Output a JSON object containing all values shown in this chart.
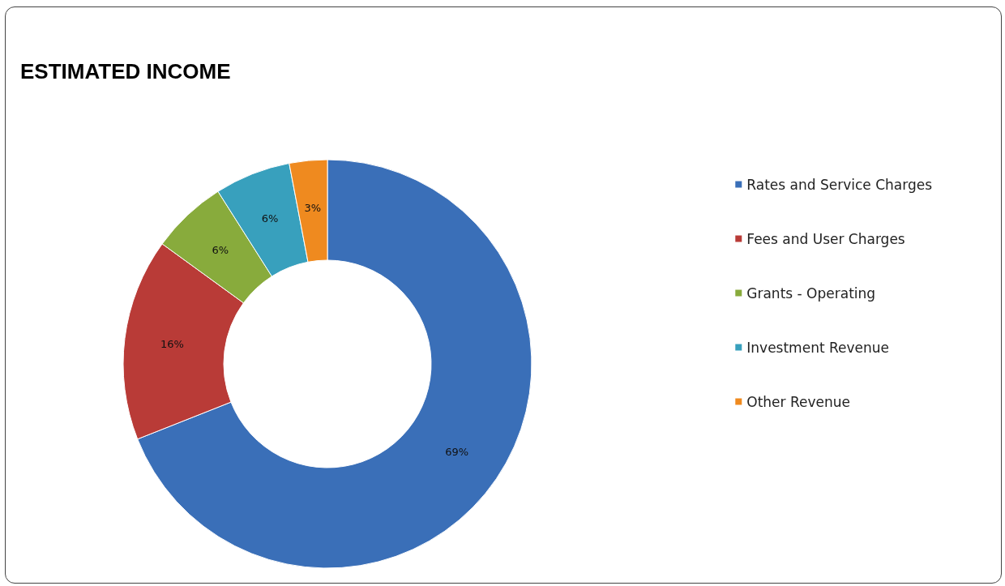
{
  "chart_data": {
    "type": "donut",
    "title": "ESTIMATED INCOME",
    "categories": [
      "Rates and Service Charges",
      "Fees and User Charges",
      "Grants - Operating",
      "Investment Revenue",
      "Other Revenue"
    ],
    "values": [
      69,
      16,
      6,
      6,
      3
    ],
    "colors": [
      "#3a6fb8",
      "#b93b37",
      "#88ab3c",
      "#38a0bd",
      "#ef8a1f"
    ],
    "value_labels": [
      "69%",
      "16%",
      "6%",
      "6%",
      "3%"
    ],
    "legend": "right"
  }
}
